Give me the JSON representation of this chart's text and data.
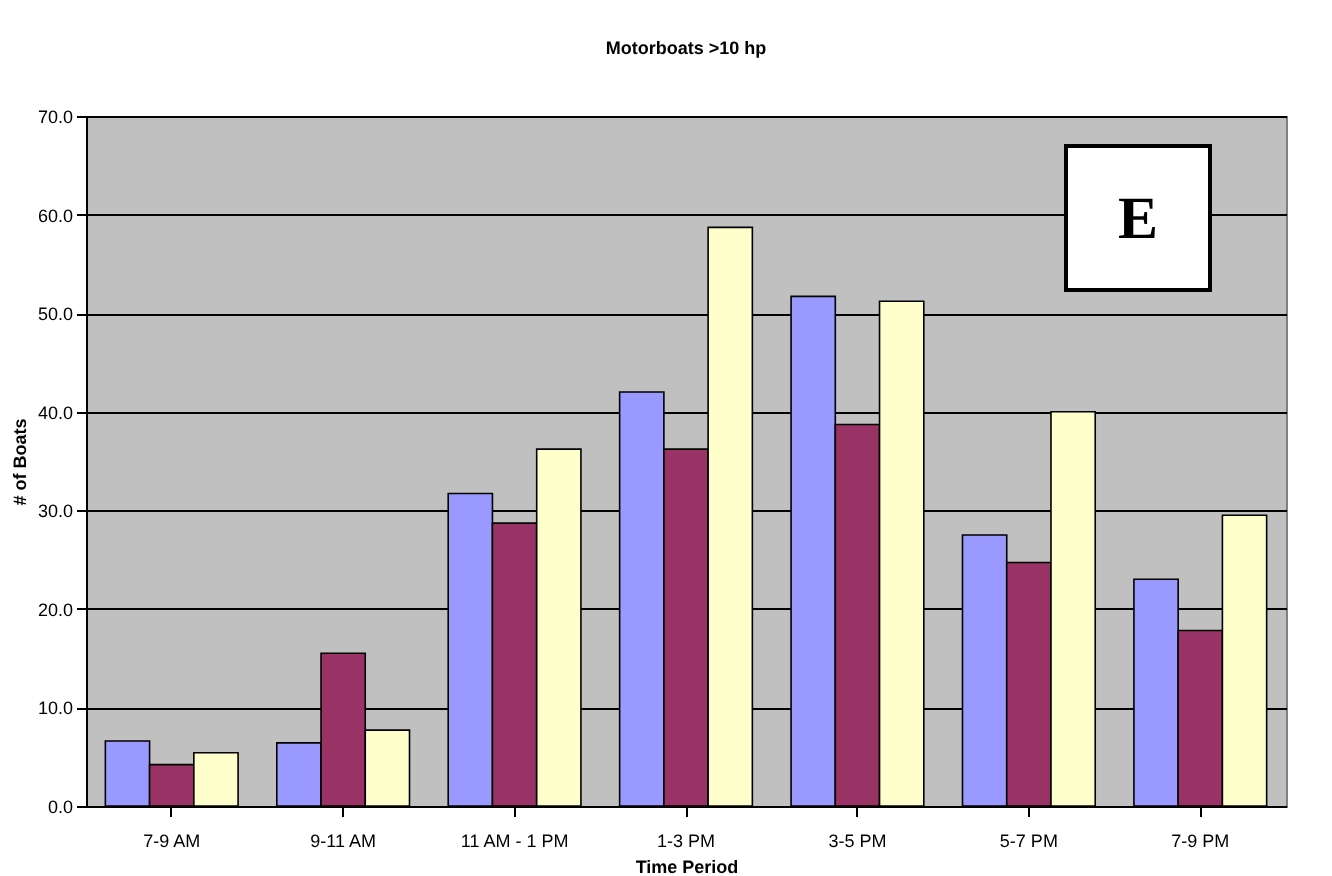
{
  "chart_data": {
    "type": "bar",
    "title": "Motorboats >10 hp",
    "xlabel": "Time Period",
    "ylabel": "# of Boats",
    "categories": [
      "7-9 AM",
      "9-11 AM",
      "11 AM - 1 PM",
      "1-3 PM",
      "3-5 PM",
      "5-7 PM",
      "7-9 PM"
    ],
    "series": [
      {
        "color": "#9999ff",
        "values": [
          6.6,
          6.4,
          31.7,
          42.0,
          51.7,
          27.5,
          23.0
        ]
      },
      {
        "color": "#993366",
        "values": [
          4.2,
          15.5,
          28.7,
          36.2,
          38.7,
          24.7,
          17.8
        ]
      },
      {
        "color": "#ffffcc",
        "values": [
          5.4,
          7.7,
          36.2,
          58.7,
          51.2,
          40.0,
          29.5
        ]
      }
    ],
    "ylim": [
      0,
      70
    ],
    "yticks": [
      {
        "value": 0,
        "label": "0.0"
      },
      {
        "value": 10,
        "label": "10.0"
      },
      {
        "value": 20,
        "label": "20.0"
      },
      {
        "value": 30,
        "label": "30.0"
      },
      {
        "value": 40,
        "label": "40.0"
      },
      {
        "value": 50,
        "label": "50.0"
      },
      {
        "value": 60,
        "label": "60.0"
      },
      {
        "value": 70,
        "label": "70.0"
      }
    ],
    "grid": "y",
    "annotations": [
      "E"
    ]
  }
}
